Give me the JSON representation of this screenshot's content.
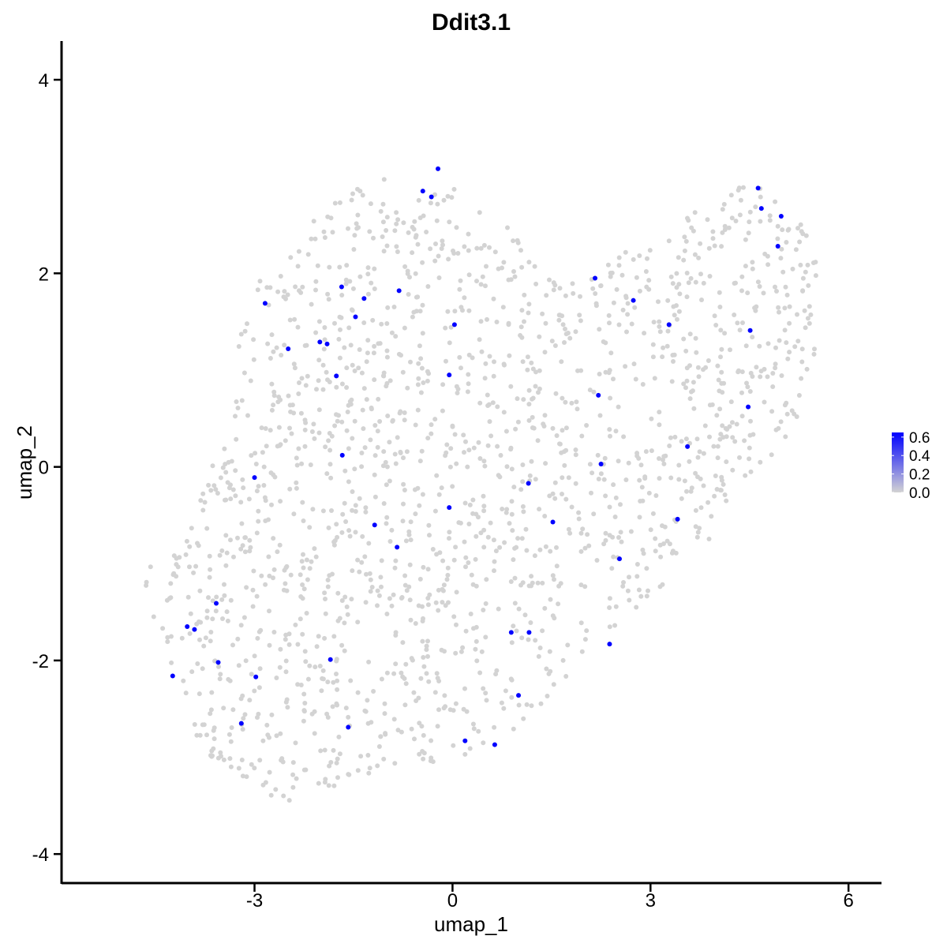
{
  "chart_data": {
    "type": "scatter",
    "title": "Ddit3.1",
    "xlabel": "umap_1",
    "ylabel": "umap_2",
    "xlim": [
      -5.9,
      6.5
    ],
    "ylim": [
      -4.3,
      4.4
    ],
    "x_ticks": [
      -3,
      0,
      3,
      6
    ],
    "y_ticks": [
      -4,
      -2,
      0,
      2,
      4
    ],
    "x_tick_labels": [
      "-3",
      "0",
      "3",
      "6"
    ],
    "y_tick_labels": [
      "-4",
      "-2",
      "0",
      "2",
      "4"
    ],
    "grid": false,
    "legend": {
      "placement": "right",
      "labels": [
        "0.6",
        "0.4",
        "0.2",
        "0.0"
      ],
      "values": [
        0.6,
        0.4,
        0.2,
        0.0
      ],
      "range": [
        0.0,
        0.65
      ],
      "color_low": "#d3d3d3",
      "color_high": "#0000ff"
    },
    "background_color": "#d3d3d3",
    "expressing_color": "#0000ff",
    "expressing_cells": [
      {
        "x": -0.22,
        "y": 3.08
      },
      {
        "x": -0.45,
        "y": 2.85
      },
      {
        "x": -0.32,
        "y": 2.79
      },
      {
        "x": 4.63,
        "y": 2.88
      },
      {
        "x": 4.68,
        "y": 2.67
      },
      {
        "x": 4.98,
        "y": 2.59
      },
      {
        "x": 4.93,
        "y": 2.28
      },
      {
        "x": 2.16,
        "y": 1.95
      },
      {
        "x": -1.68,
        "y": 1.86
      },
      {
        "x": -0.81,
        "y": 1.82
      },
      {
        "x": -1.34,
        "y": 1.74
      },
      {
        "x": 2.74,
        "y": 1.72
      },
      {
        "x": -2.84,
        "y": 1.69
      },
      {
        "x": -1.47,
        "y": 1.55
      },
      {
        "x": 0.03,
        "y": 1.47
      },
      {
        "x": 3.28,
        "y": 1.47
      },
      {
        "x": 4.51,
        "y": 1.41
      },
      {
        "x": -2.01,
        "y": 1.29
      },
      {
        "x": -1.9,
        "y": 1.27
      },
      {
        "x": -2.49,
        "y": 1.22
      },
      {
        "x": -0.05,
        "y": 0.95
      },
      {
        "x": -1.76,
        "y": 0.94
      },
      {
        "x": 2.21,
        "y": 0.74
      },
      {
        "x": 4.48,
        "y": 0.62
      },
      {
        "x": 3.56,
        "y": 0.21
      },
      {
        "x": -1.67,
        "y": 0.12
      },
      {
        "x": 2.25,
        "y": 0.03
      },
      {
        "x": -3.0,
        "y": -0.11
      },
      {
        "x": 1.15,
        "y": -0.17
      },
      {
        "x": -0.05,
        "y": -0.42
      },
      {
        "x": 3.41,
        "y": -0.54
      },
      {
        "x": 1.52,
        "y": -0.57
      },
      {
        "x": -1.18,
        "y": -0.6
      },
      {
        "x": -0.84,
        "y": -0.83
      },
      {
        "x": 2.53,
        "y": -0.95
      },
      {
        "x": -3.58,
        "y": -1.41
      },
      {
        "x": -4.02,
        "y": -1.65
      },
      {
        "x": -3.91,
        "y": -1.68
      },
      {
        "x": 0.89,
        "y": -1.71
      },
      {
        "x": 1.16,
        "y": -1.71
      },
      {
        "x": 2.38,
        "y": -1.83
      },
      {
        "x": -1.85,
        "y": -1.99
      },
      {
        "x": -3.55,
        "y": -2.02
      },
      {
        "x": -4.24,
        "y": -2.16
      },
      {
        "x": -2.98,
        "y": -2.17
      },
      {
        "x": 1.0,
        "y": -2.36
      },
      {
        "x": -3.2,
        "y": -2.65
      },
      {
        "x": -1.58,
        "y": -2.69
      },
      {
        "x": 0.19,
        "y": -2.83
      },
      {
        "x": 0.64,
        "y": -2.87
      }
    ]
  }
}
